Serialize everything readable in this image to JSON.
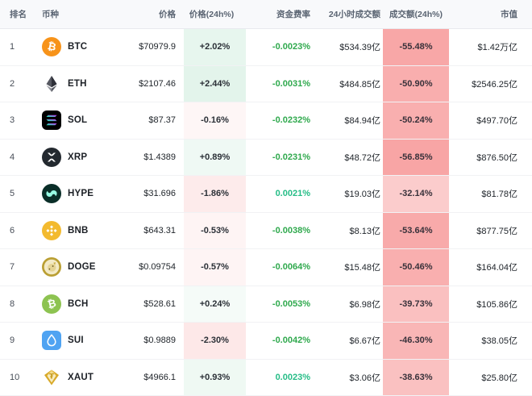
{
  "colors": {
    "up_green_rgb": "34,171,98",
    "down_red_rgb": "240,68,68",
    "funding_positive_text": "#26bd87",
    "funding_negative_text": "#2fa94d",
    "header_bg": "#f8f9fb",
    "body_text": "#1e2329",
    "btc_orange": "#f7931a",
    "bnb_yellow": "#f3ba2f",
    "bch_green": "#8dc351",
    "sui_blue": "#4fa3f2",
    "sol_black": "#000000",
    "xrp_dark": "#23292f",
    "hype_dark": "#0a2e28",
    "hype_mint": "#97fce4",
    "doge_gold": "#ba9f33",
    "xaut_gold": "#d8a928"
  },
  "table": {
    "columns": [
      {
        "key": "rank",
        "label": "排名",
        "align": "left"
      },
      {
        "key": "coin",
        "label": "币种",
        "align": "left"
      },
      {
        "key": "price",
        "label": "价格",
        "align": "right"
      },
      {
        "key": "price_chg",
        "label": "价格(24h%)",
        "align": "center"
      },
      {
        "key": "funding",
        "label": "资金费率",
        "align": "right"
      },
      {
        "key": "volume",
        "label": "24小时成交额",
        "align": "right"
      },
      {
        "key": "volume_chg",
        "label": "成交额(24h%)",
        "align": "center"
      },
      {
        "key": "market_cap",
        "label": "市值",
        "align": "right"
      }
    ],
    "rows": [
      {
        "rank": "1",
        "symbol": "BTC",
        "icon": "btc-icon",
        "price": "$70979.9",
        "price_change": "+2.02%",
        "price_change_value": 2.02,
        "funding": "-0.0023%",
        "volume": "$534.39亿",
        "volume_change": "-55.48%",
        "volume_change_value": -55.48,
        "market_cap": "$1.42万亿"
      },
      {
        "rank": "2",
        "symbol": "ETH",
        "icon": "eth-icon",
        "price": "$2107.46",
        "price_change": "+2.44%",
        "price_change_value": 2.44,
        "funding": "-0.0031%",
        "volume": "$484.85亿",
        "volume_change": "-50.90%",
        "volume_change_value": -50.9,
        "market_cap": "$2546.25亿"
      },
      {
        "rank": "3",
        "symbol": "SOL",
        "icon": "sol-icon",
        "price": "$87.37",
        "price_change": "-0.16%",
        "price_change_value": -0.16,
        "funding": "-0.0232%",
        "volume": "$84.94亿",
        "volume_change": "-50.24%",
        "volume_change_value": -50.24,
        "market_cap": "$497.70亿"
      },
      {
        "rank": "4",
        "symbol": "XRP",
        "icon": "xrp-icon",
        "price": "$1.4389",
        "price_change": "+0.89%",
        "price_change_value": 0.89,
        "funding": "-0.0231%",
        "volume": "$48.72亿",
        "volume_change": "-56.85%",
        "volume_change_value": -56.85,
        "market_cap": "$876.50亿"
      },
      {
        "rank": "5",
        "symbol": "HYPE",
        "icon": "hype-icon",
        "price": "$31.696",
        "price_change": "-1.86%",
        "price_change_value": -1.86,
        "funding": "0.0021%",
        "volume": "$19.03亿",
        "volume_change": "-32.14%",
        "volume_change_value": -32.14,
        "market_cap": "$81.78亿"
      },
      {
        "rank": "6",
        "symbol": "BNB",
        "icon": "bnb-icon",
        "price": "$643.31",
        "price_change": "-0.53%",
        "price_change_value": -0.53,
        "funding": "-0.0038%",
        "volume": "$8.13亿",
        "volume_change": "-53.64%",
        "volume_change_value": -53.64,
        "market_cap": "$877.75亿"
      },
      {
        "rank": "7",
        "symbol": "DOGE",
        "icon": "doge-icon",
        "price": "$0.09754",
        "price_change": "-0.57%",
        "price_change_value": -0.57,
        "funding": "-0.0064%",
        "volume": "$15.48亿",
        "volume_change": "-50.46%",
        "volume_change_value": -50.46,
        "market_cap": "$164.04亿"
      },
      {
        "rank": "8",
        "symbol": "BCH",
        "icon": "bch-icon",
        "price": "$528.61",
        "price_change": "+0.24%",
        "price_change_value": 0.24,
        "funding": "-0.0053%",
        "volume": "$6.98亿",
        "volume_change": "-39.73%",
        "volume_change_value": -39.73,
        "market_cap": "$105.86亿"
      },
      {
        "rank": "9",
        "symbol": "SUI",
        "icon": "sui-icon",
        "price": "$0.9889",
        "price_change": "-2.30%",
        "price_change_value": -2.3,
        "funding": "-0.0042%",
        "volume": "$6.67亿",
        "volume_change": "-46.30%",
        "volume_change_value": -46.3,
        "market_cap": "$38.05亿"
      },
      {
        "rank": "10",
        "symbol": "XAUT",
        "icon": "xaut-icon",
        "price": "$4966.1",
        "price_change": "+0.93%",
        "price_change_value": 0.93,
        "funding": "0.0023%",
        "volume": "$3.06亿",
        "volume_change": "-38.63%",
        "volume_change_value": -38.63,
        "market_cap": "$25.80亿"
      }
    ]
  }
}
